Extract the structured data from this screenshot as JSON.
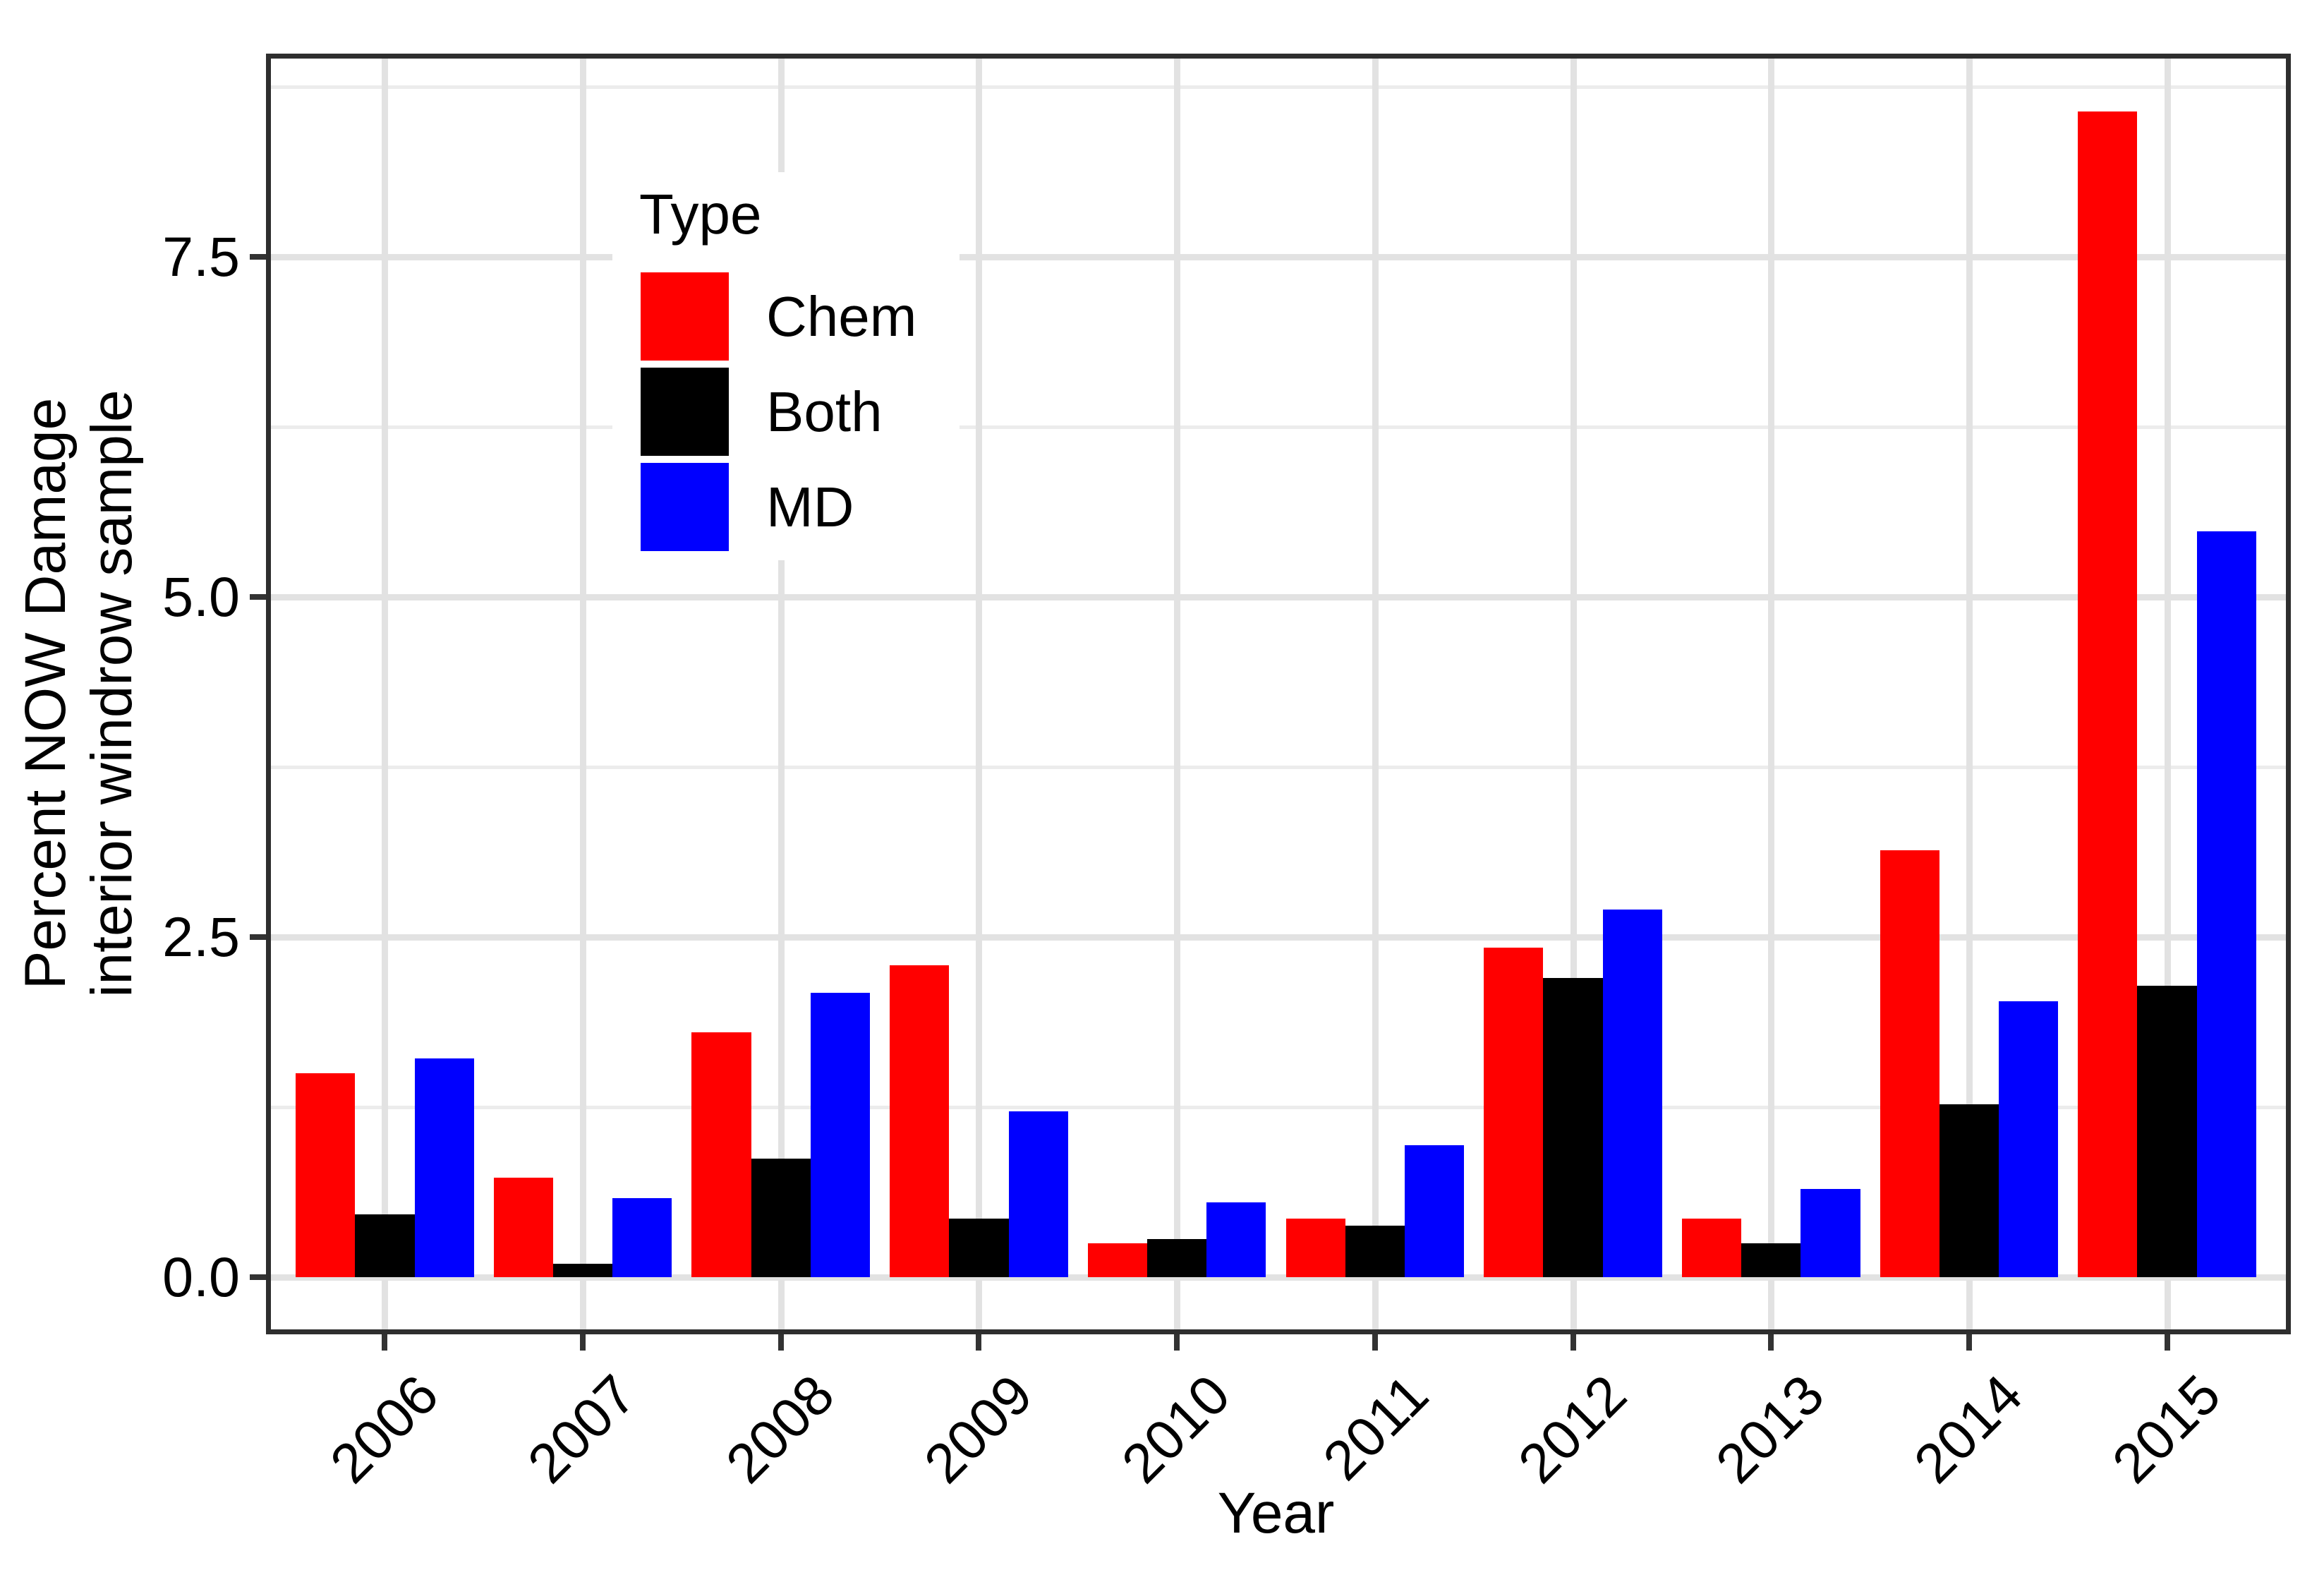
{
  "chart_data": {
    "type": "bar",
    "title": "",
    "xlabel": "Year",
    "ylabel": "Percent NOW Damage interior windrow sample",
    "ylabel_lines": [
      "Percent NOW Damage",
      "interior windrow sample"
    ],
    "categories": [
      "2006",
      "2007",
      "2008",
      "2009",
      "2010",
      "2011",
      "2012",
      "2013",
      "2014",
      "2015"
    ],
    "series": [
      {
        "name": "Chem",
        "color": "#FF0000",
        "values": [
          1.5,
          0.73,
          1.8,
          2.29,
          0.25,
          0.43,
          2.42,
          0.43,
          3.14,
          8.57
        ]
      },
      {
        "name": "Both",
        "color": "#000000",
        "values": [
          0.46,
          0.1,
          0.87,
          0.43,
          0.28,
          0.38,
          2.2,
          0.25,
          1.27,
          2.14
        ]
      },
      {
        "name": "MD",
        "color": "#0000FF",
        "values": [
          1.61,
          0.58,
          2.09,
          1.22,
          0.55,
          0.97,
          2.7,
          0.65,
          2.03,
          5.48
        ]
      }
    ],
    "ylim": [
      0,
      9
    ],
    "y_major_ticks": [
      {
        "value": 0.0,
        "label": "0.0"
      },
      {
        "value": 2.5,
        "label": "2.5"
      },
      {
        "value": 5.0,
        "label": "5.0"
      },
      {
        "value": 7.5,
        "label": "7.5"
      }
    ],
    "y_minor_gridlines": [
      1.25,
      3.75,
      6.25,
      8.75
    ],
    "grid": "on",
    "legend": {
      "title": "Type",
      "position": "inside-upper-left",
      "entries": [
        "Chem",
        "Both",
        "MD"
      ]
    }
  },
  "colors": {
    "gridline_major": "#E2E2E2",
    "gridline_minor": "#ECECEC",
    "panel_border": "#2E2E2E",
    "tick": "#333333",
    "text": "#000000",
    "background": "#FFFFFF"
  }
}
